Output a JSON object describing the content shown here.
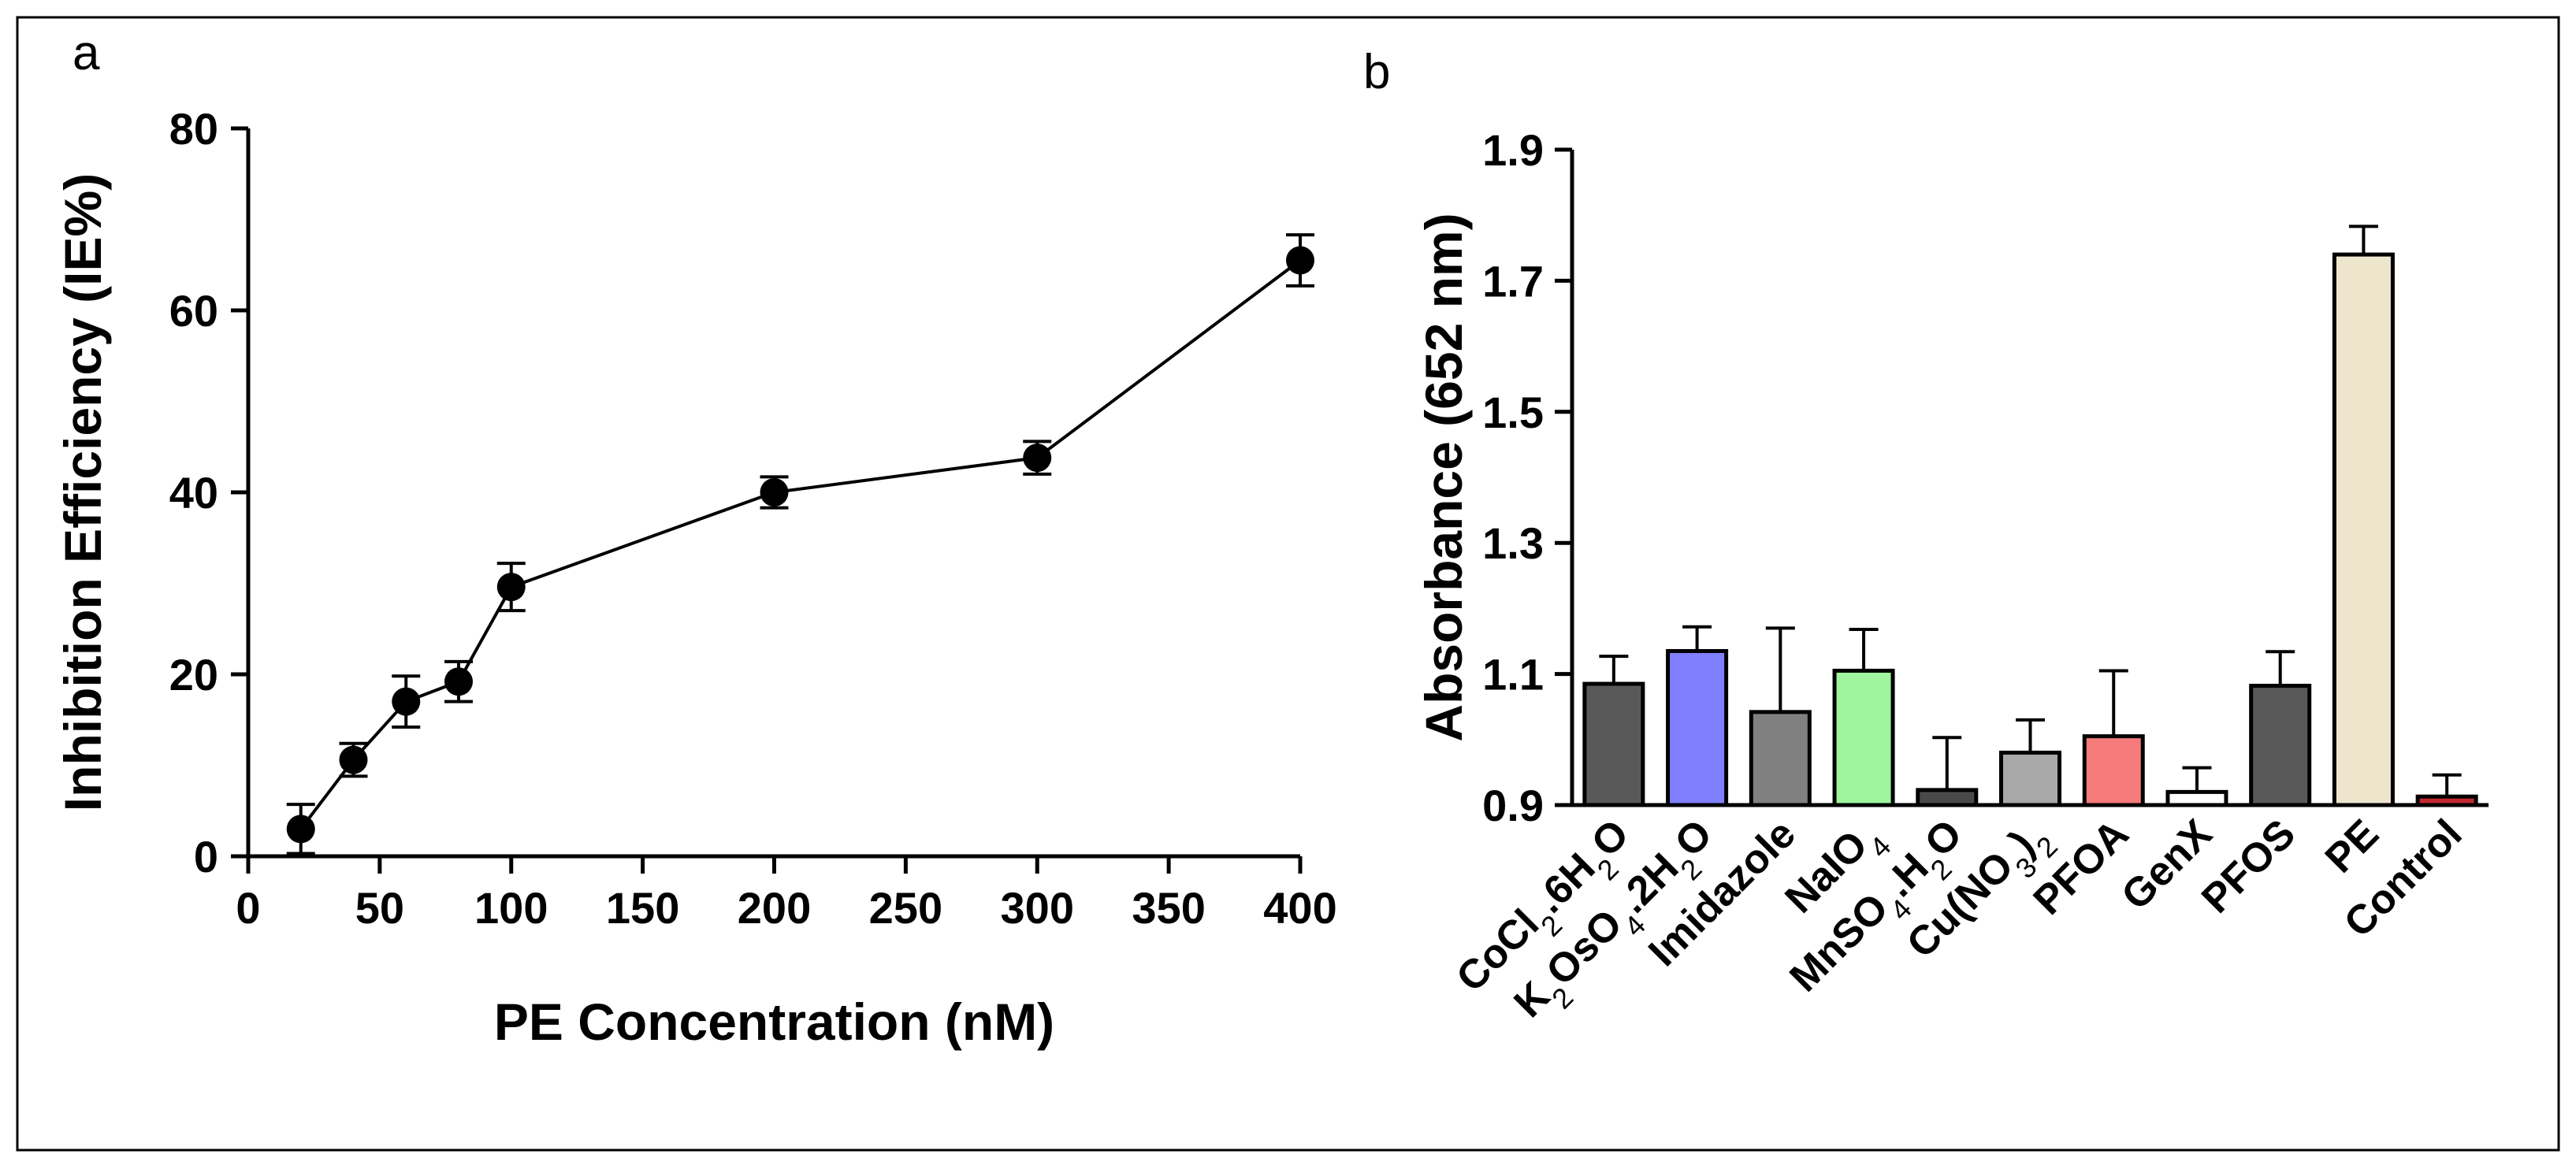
{
  "chart_data": [
    {
      "panel": "a",
      "type": "line",
      "title": "",
      "xlabel": "PE Concentration (nM)",
      "ylabel": "Inhibition Efficiency (IE%)",
      "xlim": [
        0,
        400
      ],
      "ylim": [
        0,
        80
      ],
      "xticks": [
        0,
        50,
        100,
        150,
        200,
        250,
        300,
        350,
        400
      ],
      "yticks": [
        0,
        20,
        40,
        60,
        80
      ],
      "grid": false,
      "series": [
        {
          "name": "IE%",
          "x": [
            20,
            40,
            60,
            80,
            100,
            200,
            300,
            400
          ],
          "y": [
            3.0,
            10.6,
            17.0,
            19.2,
            29.6,
            40.0,
            43.8,
            65.5
          ],
          "err": [
            2.7,
            1.8,
            2.8,
            2.2,
            2.6,
            1.7,
            1.8,
            2.8
          ],
          "marker": "circle",
          "color": "#000000"
        }
      ]
    },
    {
      "panel": "b",
      "type": "bar",
      "title": "",
      "xlabel": "",
      "ylabel": "Absorbance (652 nm)",
      "ylim": [
        0.9,
        1.9
      ],
      "yticks": [
        0.9,
        1.1,
        1.3,
        1.5,
        1.7,
        1.9
      ],
      "grid": false,
      "categories": [
        {
          "base": "CoCl",
          "sub1": "2",
          "mid": ".6H",
          "sub2": "2",
          "tail": "O"
        },
        {
          "base": "K",
          "sub1": "2",
          "mid": "OsO",
          "sub2": "4",
          "tail": ".2H",
          "sub3": "2",
          "tail2": "O"
        },
        {
          "base": "Imidazole"
        },
        {
          "base": "NaIO",
          "sub1": "4"
        },
        {
          "base": "MnSO",
          "sub1": "4",
          "mid": ".H",
          "sub2": "2",
          "tail": "O"
        },
        {
          "base": "Cu(NO",
          "sub1": "3",
          "mid": ")",
          "sub2": "2"
        },
        {
          "base": "PFOA"
        },
        {
          "base": "GenX"
        },
        {
          "base": "PFOS"
        },
        {
          "base": "PE"
        },
        {
          "base": "Control"
        }
      ],
      "values": [
        1.085,
        1.135,
        1.042,
        1.105,
        0.923,
        0.98,
        1.005,
        0.92,
        1.082,
        1.74,
        0.913
      ],
      "err": [
        0.042,
        0.037,
        0.128,
        0.063,
        0.08,
        0.05,
        0.1,
        0.037,
        0.052,
        0.043,
        0.033
      ],
      "colors": [
        "#595959",
        "#8080ff",
        "#808080",
        "#9ef59e",
        "#4a4a4a",
        "#a8a8a8",
        "#f57b7b",
        "#ffffff",
        "#595959",
        "#ede6cd",
        "#c0282e"
      ]
    }
  ],
  "labels": {
    "panel_a": "a",
    "panel_b": "b"
  }
}
